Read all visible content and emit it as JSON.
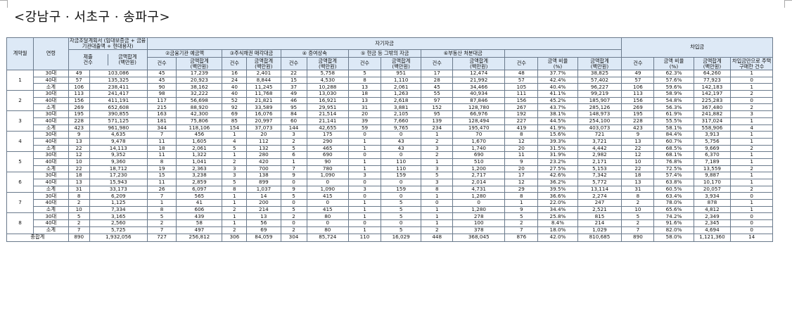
{
  "title": "<강남구 · 서초구 · 송파구>",
  "headers": {
    "contract_year": "계약월",
    "age": "연령",
    "plan_group": "자금조달계획서\n(임대보증금 + 금융기관대출액 + 현대용자)",
    "self_funds": "자기자금",
    "loan": "차입금",
    "bank_deposit": "②금융기관 예금액",
    "stock_sale": "③주식채권 매각대금",
    "inheritance": "④ 증여상속",
    "cash": "⑤ 현금 등 그밖의 자금",
    "real_estate": "⑥부동산 처분대금",
    "count": "건수",
    "amount": "금액합계\n(백만원)",
    "submit_count": "제출\n건수",
    "ratio": "금액 비율\n(%)",
    "debt_zero": "차입금만으로 주택구매한 건수"
  },
  "rows": [
    {
      "month": "1",
      "age": "30대",
      "c": [
        "49",
        "103,086",
        "45",
        "17,239",
        "16",
        "2,401",
        "22",
        "5,758",
        "5",
        "951",
        "17",
        "12,474",
        "48",
        "37.7%",
        "38,825",
        "49",
        "62.3%",
        "64,260",
        "1"
      ]
    },
    {
      "month": "",
      "age": "40대",
      "c": [
        "57",
        "135,325",
        "45",
        "20,923",
        "24",
        "8,844",
        "15",
        "4,530",
        "8",
        "1,110",
        "28",
        "21,992",
        "57",
        "42.4%",
        "57,402",
        "57",
        "57.6%",
        "77,923",
        "0"
      ]
    },
    {
      "month": "",
      "age": "소계",
      "c": [
        "106",
        "238,411",
        "90",
        "38,162",
        "40",
        "11,245",
        "37",
        "10,288",
        "13",
        "2,061",
        "45",
        "34,466",
        "105",
        "40.4%",
        "96,227",
        "106",
        "59.6%",
        "142,183",
        "1"
      ]
    },
    {
      "month": "2",
      "age": "30대",
      "c": [
        "113",
        "241,417",
        "98",
        "32,222",
        "40",
        "11,768",
        "49",
        "13,030",
        "18",
        "1,263",
        "55",
        "40,934",
        "111",
        "41.1%",
        "99,219",
        "113",
        "58.9%",
        "142,197",
        "2"
      ]
    },
    {
      "month": "",
      "age": "40대",
      "c": [
        "156",
        "411,191",
        "117",
        "56,698",
        "52",
        "21,821",
        "46",
        "16,921",
        "13",
        "2,618",
        "97",
        "87,846",
        "156",
        "45.2%",
        "185,907",
        "156",
        "54.8%",
        "225,283",
        "0"
      ]
    },
    {
      "month": "",
      "age": "소계",
      "c": [
        "269",
        "652,608",
        "215",
        "88,920",
        "92",
        "33,589",
        "95",
        "29,951",
        "31",
        "3,881",
        "152",
        "128,780",
        "267",
        "43.7%",
        "285,126",
        "269",
        "56.3%",
        "367,480",
        "2"
      ]
    },
    {
      "month": "3",
      "age": "30대",
      "c": [
        "195",
        "390,855",
        "163",
        "42,300",
        "69",
        "16,076",
        "84",
        "21,514",
        "20",
        "2,105",
        "95",
        "66,976",
        "192",
        "38.1%",
        "148,973",
        "195",
        "61.9%",
        "241,882",
        "3"
      ]
    },
    {
      "month": "",
      "age": "40대",
      "c": [
        "228",
        "571,125",
        "181",
        "75,806",
        "85",
        "20,997",
        "60",
        "21,141",
        "39",
        "7,660",
        "139",
        "128,494",
        "227",
        "44.5%",
        "254,100",
        "228",
        "55.5%",
        "317,024",
        "1"
      ]
    },
    {
      "month": "",
      "age": "소계",
      "c": [
        "423",
        "961,980",
        "344",
        "118,106",
        "154",
        "37,073",
        "144",
        "42,655",
        "59",
        "9,765",
        "234",
        "195,470",
        "419",
        "41.9%",
        "403,073",
        "423",
        "58.1%",
        "558,906",
        "4"
      ]
    },
    {
      "month": "4",
      "age": "30대",
      "c": [
        "9",
        "4,635",
        "7",
        "456",
        "1",
        "20",
        "3",
        "175",
        "0",
        "0",
        "1",
        "70",
        "8",
        "15.6%",
        "721",
        "9",
        "84.4%",
        "3,913",
        "1"
      ]
    },
    {
      "month": "",
      "age": "40대",
      "c": [
        "13",
        "9,478",
        "11",
        "1,605",
        "4",
        "112",
        "2",
        "290",
        "1",
        "43",
        "2",
        "1,670",
        "12",
        "39.3%",
        "3,721",
        "13",
        "60.7%",
        "5,756",
        "1"
      ]
    },
    {
      "month": "",
      "age": "소계",
      "c": [
        "22",
        "14,113",
        "18",
        "2,061",
        "5",
        "132",
        "5",
        "465",
        "1",
        "43",
        "3",
        "1,740",
        "20",
        "31.5%",
        "4,442",
        "22",
        "68.5%",
        "9,669",
        "2"
      ]
    },
    {
      "month": "5",
      "age": "30대",
      "c": [
        "12",
        "9,352",
        "11",
        "1,322",
        "1",
        "280",
        "6",
        "690",
        "0",
        "0",
        "2",
        "690",
        "11",
        "31.9%",
        "2,982",
        "12",
        "68.1%",
        "6,370",
        "1"
      ]
    },
    {
      "month": "",
      "age": "40대",
      "c": [
        "10",
        "9,360",
        "8",
        "1,041",
        "2",
        "420",
        "1",
        "90",
        "1",
        "110",
        "1",
        "510",
        "9",
        "23.2%",
        "2,171",
        "10",
        "76.8%",
        "7,189",
        "1"
      ]
    },
    {
      "month": "",
      "age": "소계",
      "c": [
        "22",
        "18,712",
        "19",
        "2,363",
        "3",
        "700",
        "7",
        "780",
        "1",
        "110",
        "3",
        "1,200",
        "20",
        "27.5%",
        "5,153",
        "22",
        "72.5%",
        "13,559",
        "2"
      ]
    },
    {
      "month": "6",
      "age": "30대",
      "c": [
        "18",
        "17,230",
        "15",
        "3,238",
        "3",
        "138",
        "9",
        "1,090",
        "3",
        "159",
        "5",
        "2,717",
        "17",
        "42.6%",
        "7,342",
        "18",
        "57.4%",
        "9,887",
        "1"
      ]
    },
    {
      "month": "",
      "age": "40대",
      "c": [
        "13",
        "15,943",
        "11",
        "2,859",
        "5",
        "899",
        "0",
        "0",
        "0",
        "0",
        "3",
        "2,014",
        "12",
        "36.2%",
        "5,772",
        "13",
        "63.8%",
        "10,170",
        "1"
      ]
    },
    {
      "month": "",
      "age": "소계",
      "c": [
        "31",
        "33,173",
        "26",
        "6,097",
        "8",
        "1,037",
        "9",
        "1,090",
        "3",
        "159",
        "8",
        "4,731",
        "29",
        "39.5%",
        "13,114",
        "31",
        "60.5%",
        "20,057",
        "2"
      ]
    },
    {
      "month": "7",
      "age": "30대",
      "c": [
        "8",
        "6,209",
        "7",
        "565",
        "1",
        "14",
        "5",
        "415",
        "0",
        "0",
        "1",
        "1,280",
        "8",
        "36.6%",
        "2,274",
        "8",
        "63.4%",
        "3,934",
        "0"
      ]
    },
    {
      "month": "",
      "age": "40대",
      "c": [
        "2",
        "1,125",
        "1",
        "41",
        "1",
        "200",
        "0",
        "0",
        "1",
        "5",
        "0",
        "0",
        "1",
        "22.0%",
        "247",
        "2",
        "78.0%",
        "878",
        "1"
      ]
    },
    {
      "month": "",
      "age": "소계",
      "c": [
        "10",
        "7,334",
        "8",
        "606",
        "2",
        "214",
        "5",
        "415",
        "1",
        "5",
        "1",
        "1,280",
        "9",
        "34.4%",
        "2,521",
        "10",
        "65.6%",
        "4,812",
        "1"
      ]
    },
    {
      "month": "8",
      "age": "30대",
      "c": [
        "5",
        "3,165",
        "5",
        "439",
        "1",
        "13",
        "2",
        "80",
        "1",
        "5",
        "1",
        "278",
        "5",
        "25.8%",
        "815",
        "5",
        "74.2%",
        "2,349",
        "0"
      ]
    },
    {
      "month": "",
      "age": "40대",
      "c": [
        "2",
        "2,560",
        "2",
        "58",
        "1",
        "56",
        "0",
        "0",
        "0",
        "0",
        "1",
        "100",
        "2",
        "8.4%",
        "214",
        "2",
        "91.6%",
        "2,345",
        "0"
      ]
    },
    {
      "month": "",
      "age": "소계",
      "c": [
        "7",
        "5,725",
        "7",
        "497",
        "2",
        "69",
        "2",
        "80",
        "1",
        "5",
        "2",
        "378",
        "7",
        "18.0%",
        "1,029",
        "7",
        "82.0%",
        "4,694",
        "0"
      ]
    }
  ],
  "total": {
    "label": "종합계",
    "c": [
      "890",
      "1,932,056",
      "727",
      "256,812",
      "306",
      "84,059",
      "304",
      "85,724",
      "110",
      "16,029",
      "448",
      "368,045",
      "876",
      "42.0%",
      "810,685",
      "890",
      "58.0%",
      "1,121,360",
      "14"
    ]
  }
}
